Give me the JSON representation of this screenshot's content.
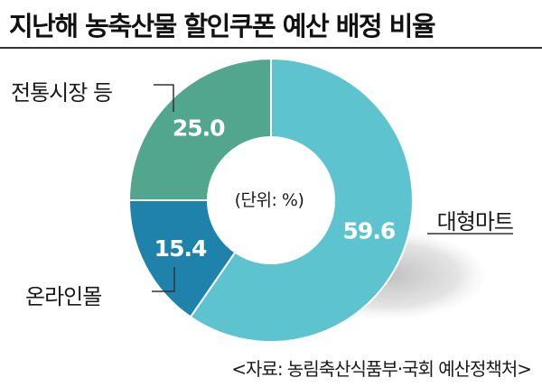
{
  "title": "지난해 농축산물 할인쿠폰 예산 배정 비율",
  "unit_note": "(단위: %)",
  "source": "<자료: 농림축산식품부·국회 예산정책처>",
  "chart_data": {
    "type": "pie",
    "title": "지난해 농축산물 할인쿠폰 예산 배정 비율",
    "unit": "%",
    "slices": [
      {
        "label": "대형마트",
        "value": 59.6,
        "value_text": "59.6",
        "color": "#5cc3cf"
      },
      {
        "label": "온라인몰",
        "value": 15.4,
        "value_text": "15.4",
        "color": "#1f82ab"
      },
      {
        "label": "전통시장 등",
        "value": 25.0,
        "value_text": "25.0",
        "color": "#52a68e"
      }
    ]
  }
}
